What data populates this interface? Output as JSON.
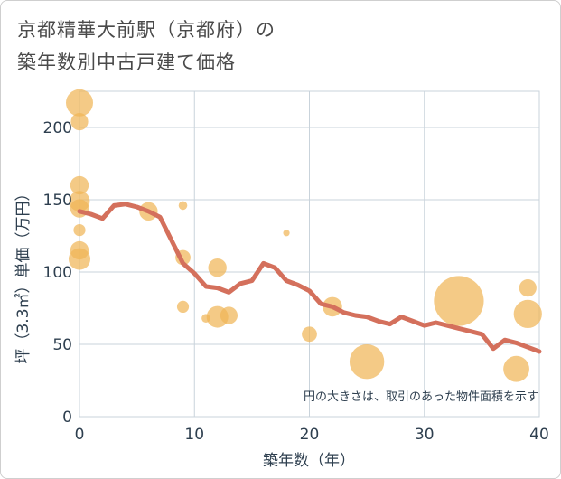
{
  "title_line1": "京都精華大前駅（京都府）の",
  "title_line2": "築年数別中古戸建て価格",
  "chart_data": {
    "type": "scatter",
    "xlabel": "築年数（年）",
    "ylabel": "坪（3.3㎡）単価（万円）",
    "xlim": [
      0,
      40
    ],
    "ylim": [
      0,
      225
    ],
    "xticks": [
      0,
      10,
      20,
      30,
      40
    ],
    "yticks": [
      0,
      50,
      100,
      150,
      200
    ],
    "grid": true,
    "note": "円の大きさは、取引のあった物件面積を示す",
    "colors": {
      "bubble": "#f0b557",
      "line": "#d4705c",
      "grid": "#c9d3db",
      "text": "#2e3f4f"
    },
    "points": [
      {
        "x": 0,
        "y": 217,
        "s": 1.25
      },
      {
        "x": 0,
        "y": 204,
        "s": 0.8
      },
      {
        "x": 0,
        "y": 160,
        "s": 0.85
      },
      {
        "x": 0,
        "y": 149,
        "s": 0.95
      },
      {
        "x": 0,
        "y": 144,
        "s": 0.85
      },
      {
        "x": 0,
        "y": 129,
        "s": 0.55
      },
      {
        "x": 0,
        "y": 115,
        "s": 0.85
      },
      {
        "x": 0,
        "y": 109,
        "s": 1.0
      },
      {
        "x": 6,
        "y": 142,
        "s": 0.85
      },
      {
        "x": 9,
        "y": 146,
        "s": 0.4
      },
      {
        "x": 9,
        "y": 110,
        "s": 0.7
      },
      {
        "x": 9,
        "y": 76,
        "s": 0.55
      },
      {
        "x": 11,
        "y": 68,
        "s": 0.4
      },
      {
        "x": 12,
        "y": 103,
        "s": 0.85
      },
      {
        "x": 12,
        "y": 69,
        "s": 1.0
      },
      {
        "x": 13,
        "y": 70,
        "s": 0.8
      },
      {
        "x": 18,
        "y": 127,
        "s": 0.3
      },
      {
        "x": 20,
        "y": 57,
        "s": 0.7
      },
      {
        "x": 22,
        "y": 76,
        "s": 0.9
      },
      {
        "x": 25,
        "y": 38,
        "s": 1.6
      },
      {
        "x": 33,
        "y": 80,
        "s": 2.3
      },
      {
        "x": 38,
        "y": 33,
        "s": 1.2
      },
      {
        "x": 39,
        "y": 89,
        "s": 0.8
      },
      {
        "x": 39,
        "y": 71,
        "s": 1.3
      }
    ],
    "trend": {
      "x": [
        0,
        1,
        2,
        3,
        4,
        5,
        6,
        7,
        8,
        9,
        10,
        11,
        12,
        13,
        14,
        15,
        16,
        17,
        18,
        19,
        20,
        21,
        22,
        23,
        24,
        25,
        26,
        27,
        28,
        29,
        30,
        31,
        32,
        33,
        34,
        35,
        36,
        37,
        38,
        39,
        40
      ],
      "y": [
        142,
        140,
        137,
        146,
        147,
        145,
        142,
        138,
        122,
        106,
        99,
        90,
        89,
        86,
        92,
        94,
        106,
        103,
        94,
        91,
        87,
        78,
        76,
        72,
        70,
        69,
        66,
        64,
        69,
        66,
        63,
        65,
        63,
        61,
        59,
        57,
        47,
        53,
        51,
        48,
        45
      ]
    }
  }
}
